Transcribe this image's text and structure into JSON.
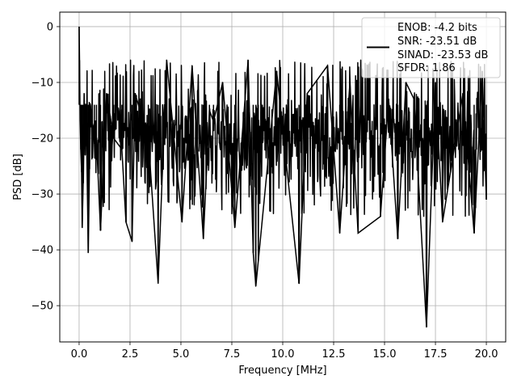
{
  "chart_data": {
    "type": "line",
    "title": "",
    "xlabel": "Frequency [MHz]",
    "ylabel": "PSD [dB]",
    "xlim": [
      -0.95,
      20.95
    ],
    "ylim": [
      -56.5,
      2.6
    ],
    "grid": true,
    "legend_position": "top-right",
    "x_ticks": [
      0.0,
      2.5,
      5.0,
      7.5,
      10.0,
      12.5,
      15.0,
      17.5,
      20.0
    ],
    "x_tick_labels": [
      "0.0",
      "2.5",
      "5.0",
      "7.5",
      "10.0",
      "12.5",
      "15.0",
      "17.5",
      "20.0"
    ],
    "y_ticks": [
      0,
      -10,
      -20,
      -30,
      -40,
      -50
    ],
    "y_tick_labels": [
      "0",
      "−10",
      "−20",
      "−30",
      "−40",
      "−50"
    ],
    "legend": [
      "ENOB: -4.2 bits",
      "SNR: -23.51 dB",
      "SINAD: -23.53 dB",
      "SFDR: 1.86"
    ],
    "series": [
      {
        "color": "#000000",
        "x": [
          0.0,
          0.02,
          0.05,
          0.08,
          0.12,
          0.15,
          0.2,
          0.25,
          0.3,
          0.35,
          0.45,
          0.55,
          0.75,
          0.85,
          1.05,
          1.35,
          1.7,
          2.1,
          2.3,
          2.6,
          2.75,
          3.4,
          3.88,
          4.3,
          5.05,
          5.55,
          6.1,
          6.4,
          6.6,
          7.05,
          7.65,
          8.3,
          8.55,
          8.68,
          8.8,
          9.7,
          10.8,
          11.2,
          12.2,
          12.8,
          13.3,
          13.7,
          14.8,
          15.2,
          15.65,
          16.05,
          16.45,
          17.06,
          17.5,
          17.85,
          18.85,
          19.4,
          19.8,
          20.0
        ],
        "y": [
          0,
          -6,
          -17,
          -22,
          -26,
          -36,
          -28,
          -12,
          -23,
          -16,
          -40.5,
          -14,
          -21,
          -20,
          -36.5,
          -12,
          -20,
          -22,
          -35,
          -38.5,
          -12,
          -20,
          -46,
          -6,
          -35,
          -7,
          -38,
          -15,
          -17,
          -10,
          -36,
          -6,
          -40.5,
          -46.5,
          -42,
          -8,
          -46,
          -12,
          -7,
          -37,
          -10,
          -37,
          -34,
          -13,
          -38,
          -10,
          -13,
          -53.8,
          -10,
          -35,
          -12,
          -37,
          -8,
          -31
        ]
      }
    ]
  }
}
